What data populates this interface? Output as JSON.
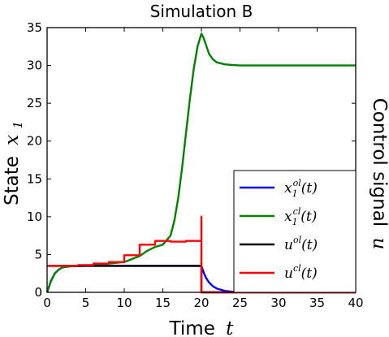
{
  "chart_data": {
    "type": "line",
    "title": "Simulation B",
    "xlabel_text": "Time",
    "xlabel_var": "t",
    "ylabel_text": "State",
    "ylabel_var": "x",
    "ylabel_sub": "1",
    "y2label_text": "Control signal",
    "y2label_var": "u",
    "xlim": [
      0,
      40
    ],
    "ylim": [
      0,
      35
    ],
    "xticks": [
      "0",
      "5",
      "10",
      "15",
      "20",
      "25",
      "30",
      "35",
      "40"
    ],
    "yticks": [
      "0",
      "5",
      "10",
      "15",
      "20",
      "25",
      "30",
      "35"
    ],
    "grid": false,
    "legend_position": "lower-right",
    "series": [
      {
        "name": "x1_ol",
        "legend": {
          "base": "x",
          "sub": "1",
          "sup": "ol",
          "arg": "(t)"
        },
        "color": "#0000ff",
        "x": [
          0,
          0.5,
          1,
          1.5,
          2,
          3,
          5,
          10,
          15,
          20,
          20.3,
          20.6,
          21,
          21.5,
          22,
          23,
          24,
          26,
          30,
          40
        ],
        "y": [
          0,
          1.5,
          2.5,
          3.0,
          3.3,
          3.45,
          3.5,
          3.5,
          3.5,
          3.5,
          2.6,
          1.9,
          1.3,
          0.8,
          0.5,
          0.2,
          0.08,
          0.02,
          0,
          0
        ]
      },
      {
        "name": "x1_cl",
        "legend": {
          "base": "x",
          "sub": "1",
          "sup": "cl",
          "arg": "(t)"
        },
        "color": "#008000",
        "x": [
          0,
          0.5,
          1,
          1.5,
          2,
          3,
          4,
          5,
          6,
          8,
          10,
          11,
          12,
          13,
          14,
          15,
          16,
          16.5,
          17,
          17.5,
          18,
          18.5,
          19,
          19.5,
          20,
          20.3,
          20.7,
          21,
          21.5,
          22,
          23,
          24,
          25,
          27,
          30,
          35,
          40
        ],
        "y": [
          0,
          1.5,
          2.5,
          3.0,
          3.3,
          3.45,
          3.5,
          3.55,
          3.6,
          3.8,
          4.0,
          4.4,
          4.8,
          5.5,
          6.0,
          6.3,
          7.5,
          9.5,
          12.5,
          16.5,
          21.0,
          25.5,
          29.5,
          32.5,
          34.2,
          33.6,
          32.4,
          31.5,
          30.8,
          30.4,
          30.15,
          30.05,
          30.0,
          30.0,
          30.0,
          30.0,
          30.0
        ]
      },
      {
        "name": "u_ol",
        "legend": {
          "base": "u",
          "sub": "",
          "sup": "ol",
          "arg": "(t)"
        },
        "color": "#000000",
        "x": [
          0,
          20,
          20,
          40
        ],
        "y": [
          3.5,
          3.5,
          0,
          0
        ]
      },
      {
        "name": "u_cl",
        "legend": {
          "base": "u",
          "sub": "",
          "sup": "cl",
          "arg": "(t)"
        },
        "color": "#ff0000",
        "x": [
          0,
          4,
          4,
          6,
          6,
          8,
          8,
          10,
          10,
          12,
          12,
          14,
          14,
          16,
          16,
          18,
          18,
          20,
          20,
          20,
          20,
          40
        ],
        "y": [
          3.5,
          3.5,
          3.6,
          3.6,
          3.8,
          3.8,
          4.0,
          4.0,
          4.9,
          4.9,
          6.3,
          6.3,
          6.8,
          6.8,
          6.7,
          6.7,
          6.8,
          6.8,
          10,
          10,
          0,
          0
        ]
      }
    ]
  }
}
